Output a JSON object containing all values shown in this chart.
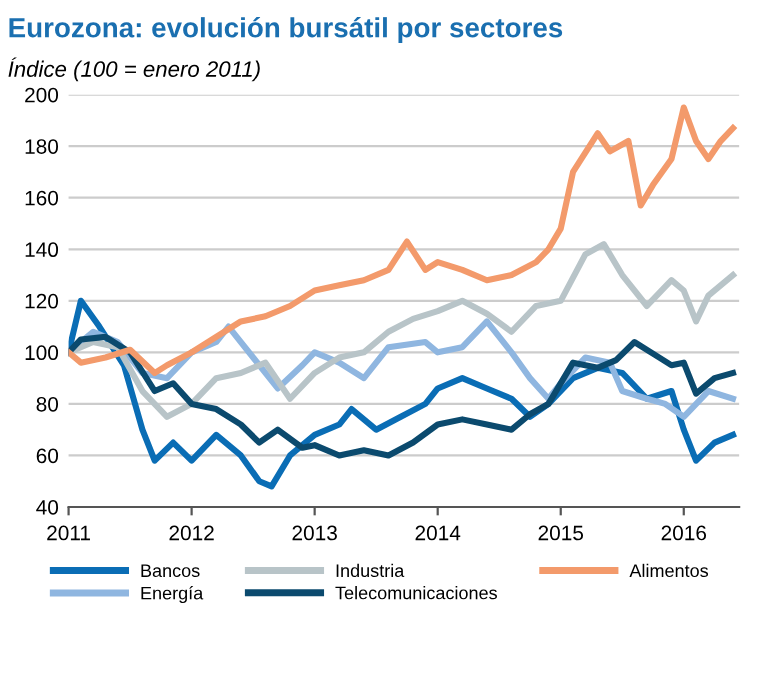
{
  "chart_data": {
    "type": "line",
    "title": "Eurozona: evolución bursátil por sectores",
    "subtitle": "Índice (100 = enero 2011)",
    "xlim": [
      2011,
      2016.45
    ],
    "xticks": [
      {
        "value": 2011,
        "label": "2011"
      },
      {
        "value": 2012,
        "label": "2012"
      },
      {
        "value": 2013,
        "label": "2013"
      },
      {
        "value": 2014,
        "label": "2014"
      },
      {
        "value": 2015,
        "label": "2015"
      },
      {
        "value": 2016,
        "label": "2016"
      }
    ],
    "ylim": [
      40,
      200
    ],
    "yticks": [
      40,
      60,
      80,
      100,
      120,
      140,
      160,
      180,
      200
    ],
    "grid": "y",
    "legend": "bottom",
    "line_style": "solid",
    "marker": "none",
    "series": [
      {
        "name": "Bancos",
        "color": "#0a6db5",
        "x": [
          2011,
          2011.1,
          2011.25,
          2011.45,
          2011.6,
          2011.7,
          2011.85,
          2012.0,
          2012.2,
          2012.4,
          2012.55,
          2012.65,
          2012.8,
          2013.0,
          2013.2,
          2013.3,
          2013.5,
          2013.7,
          2013.9,
          2014.0,
          2014.2,
          2014.4,
          2014.6,
          2014.75,
          2014.9,
          2015.1,
          2015.3,
          2015.5,
          2015.7,
          2015.9,
          2016.0,
          2016.1,
          2016.25,
          2016.4
        ],
        "values": [
          100,
          120,
          110,
          95,
          70,
          58,
          65,
          58,
          68,
          60,
          50,
          48,
          60,
          68,
          72,
          78,
          70,
          75,
          80,
          86,
          90,
          86,
          82,
          75,
          80,
          90,
          94,
          92,
          82,
          85,
          70,
          58,
          65,
          68
        ]
      },
      {
        "name": "Energía",
        "color": "#8fb6e0",
        "x": [
          2011,
          2011.2,
          2011.4,
          2011.6,
          2011.8,
          2012.0,
          2012.2,
          2012.3,
          2012.5,
          2012.7,
          2012.9,
          2013.0,
          2013.2,
          2013.4,
          2013.6,
          2013.9,
          2014.0,
          2014.2,
          2014.4,
          2014.6,
          2014.75,
          2014.9,
          2015.0,
          2015.2,
          2015.4,
          2015.5,
          2015.7,
          2015.85,
          2016.0,
          2016.2,
          2016.4
        ],
        "values": [
          100,
          108,
          104,
          92,
          90,
          100,
          104,
          110,
          98,
          86,
          95,
          100,
          96,
          90,
          102,
          104,
          100,
          102,
          112,
          100,
          90,
          82,
          88,
          98,
          96,
          85,
          82,
          80,
          75,
          85,
          82
        ]
      },
      {
        "name": "Industria",
        "color": "#b8c4c8",
        "x": [
          2011,
          2011.2,
          2011.4,
          2011.6,
          2011.8,
          2012.0,
          2012.2,
          2012.4,
          2012.6,
          2012.8,
          2013.0,
          2013.2,
          2013.4,
          2013.6,
          2013.8,
          2014.0,
          2014.2,
          2014.4,
          2014.6,
          2014.8,
          2015.0,
          2015.2,
          2015.35,
          2015.5,
          2015.7,
          2015.9,
          2016.0,
          2016.1,
          2016.2,
          2016.4
        ],
        "values": [
          100,
          104,
          102,
          85,
          75,
          80,
          90,
          92,
          96,
          82,
          92,
          98,
          100,
          108,
          113,
          116,
          120,
          115,
          108,
          118,
          120,
          138,
          142,
          130,
          118,
          128,
          124,
          112,
          122,
          130
        ]
      },
      {
        "name": "Telecomunicaciones",
        "color": "#0b4a6e",
        "x": [
          2011,
          2011.1,
          2011.3,
          2011.5,
          2011.7,
          2011.85,
          2012.0,
          2012.2,
          2012.4,
          2012.55,
          2012.7,
          2012.9,
          2013.0,
          2013.2,
          2013.4,
          2013.6,
          2013.8,
          2014.0,
          2014.2,
          2014.4,
          2014.6,
          2014.75,
          2014.9,
          2015.1,
          2015.3,
          2015.45,
          2015.6,
          2015.8,
          2015.9,
          2016.0,
          2016.1,
          2016.25,
          2016.4
        ],
        "values": [
          100,
          105,
          106,
          100,
          85,
          88,
          80,
          78,
          72,
          65,
          70,
          63,
          64,
          60,
          62,
          60,
          65,
          72,
          74,
          72,
          70,
          76,
          80,
          96,
          94,
          97,
          104,
          98,
          95,
          96,
          84,
          90,
          92
        ]
      },
      {
        "name": "Alimentos",
        "color": "#f39a6b",
        "x": [
          2011,
          2011.1,
          2011.3,
          2011.5,
          2011.7,
          2011.8,
          2012.0,
          2012.2,
          2012.4,
          2012.6,
          2012.8,
          2013.0,
          2013.2,
          2013.4,
          2013.6,
          2013.75,
          2013.9,
          2014.0,
          2014.2,
          2014.4,
          2014.6,
          2014.8,
          2014.9,
          2015.0,
          2015.1,
          2015.3,
          2015.4,
          2015.55,
          2015.65,
          2015.75,
          2015.9,
          2016.0,
          2016.1,
          2016.2,
          2016.3,
          2016.4
        ],
        "values": [
          100,
          96,
          98,
          101,
          92,
          95,
          100,
          106,
          112,
          114,
          118,
          124,
          126,
          128,
          132,
          143,
          132,
          135,
          132,
          128,
          130,
          135,
          140,
          148,
          170,
          185,
          178,
          182,
          157,
          165,
          175,
          195,
          182,
          175,
          182,
          187
        ]
      }
    ]
  }
}
